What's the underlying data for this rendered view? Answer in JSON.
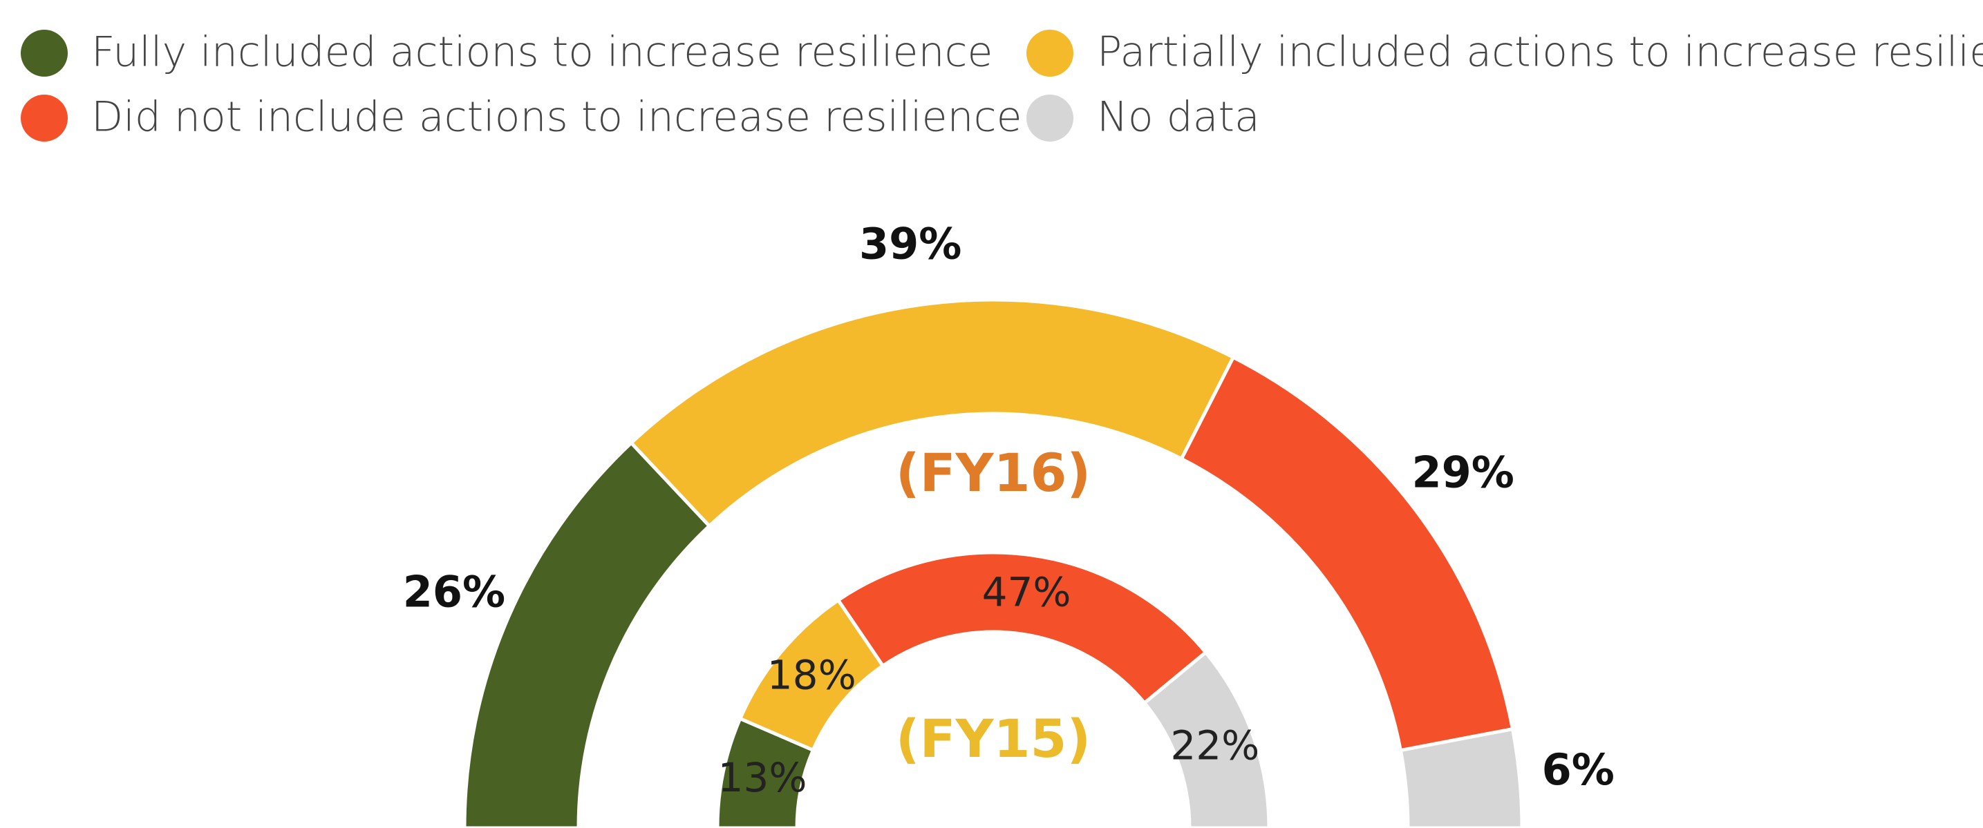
{
  "chart_data": {
    "type": "semi-donut",
    "categories": [
      "Fully included actions to increase resilience",
      "Partially included actions to increase resilience",
      "Did not include actions to increase resilience",
      "No data"
    ],
    "colors": [
      "#4a6124",
      "#f4ba2c",
      "#f4502a",
      "#d6d6d6"
    ],
    "series": [
      {
        "name": "(FY16)",
        "color": "#e07b27",
        "values": [
          26,
          39,
          29,
          6
        ],
        "value_labels": [
          "26%",
          "39%",
          "29%",
          "6%"
        ]
      },
      {
        "name": "(FY15)",
        "color": "#ecbb2c",
        "values": [
          13,
          18,
          47,
          22
        ],
        "value_labels": [
          "13%",
          "18%",
          "47%",
          "22%"
        ]
      }
    ]
  }
}
